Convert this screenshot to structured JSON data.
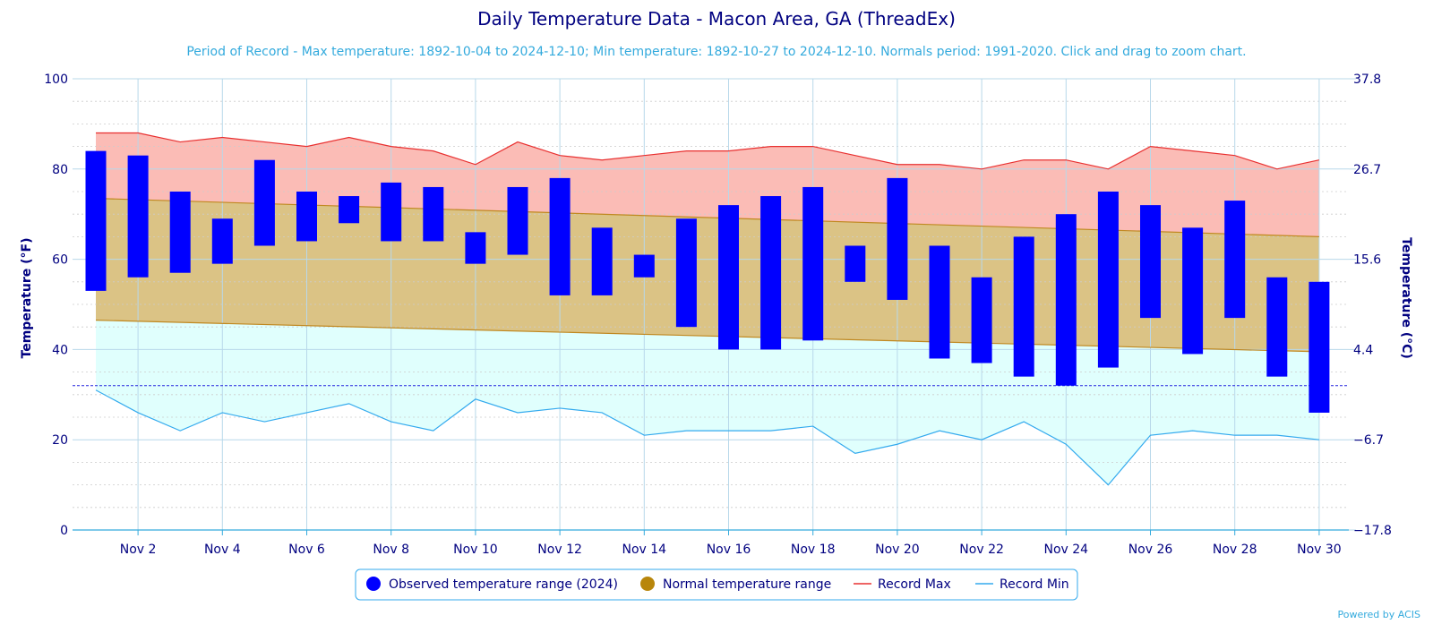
{
  "chart_data": {
    "type": "bar",
    "title": "Daily Temperature Data - Macon Area, GA (ThreadEx)",
    "subtitle": "Period of Record - Max temperature: 1892-10-04 to 2024-12-10; Min temperature: 1892-10-27 to 2024-12-10. Normals period: 1991-2020. Click and drag to zoom chart.",
    "ylabel": "Temperature (°F)",
    "ylabel_right": "Temperature (°C)",
    "ylim": [
      0,
      100
    ],
    "y_ticks": [
      "0",
      "20",
      "40",
      "60",
      "80",
      "100"
    ],
    "y_right_ticks": [
      "−17.8",
      "−6.7",
      "4.4",
      "15.6",
      "26.7",
      "37.8"
    ],
    "x_days": [
      1,
      2,
      3,
      4,
      5,
      6,
      7,
      8,
      9,
      10,
      11,
      12,
      13,
      14,
      15,
      16,
      17,
      18,
      19,
      20,
      21,
      22,
      23,
      24,
      25,
      26,
      27,
      28,
      29,
      30
    ],
    "x_tick_labels": [
      "Nov 2",
      "Nov 4",
      "Nov 6",
      "Nov 8",
      "Nov 10",
      "Nov 12",
      "Nov 14",
      "Nov 16",
      "Nov 18",
      "Nov 20",
      "Nov 22",
      "Nov 24",
      "Nov 26",
      "Nov 28",
      "Nov 30"
    ],
    "freezing_line": 32,
    "series": [
      {
        "name": "Observed temperature range (2024)",
        "color": "#0000ff",
        "low": [
          53,
          56,
          57,
          59,
          63,
          64,
          68,
          64,
          64,
          59,
          61,
          52,
          52,
          56,
          45,
          40,
          40,
          42,
          55,
          51,
          38,
          37,
          34,
          32,
          36,
          47,
          39,
          47,
          34,
          26
        ],
        "high": [
          84,
          83,
          75,
          69,
          82,
          75,
          74,
          77,
          76,
          66,
          76,
          78,
          67,
          61,
          69,
          72,
          74,
          76,
          63,
          78,
          63,
          56,
          65,
          70,
          75,
          72,
          67,
          73,
          56,
          55
        ]
      },
      {
        "name": "Normal temperature range",
        "color": "#b8860b",
        "low_start": 46.5,
        "low_end": 39.5,
        "high_start": 73.5,
        "high_end": 65
      },
      {
        "name": "Record Max",
        "color": "#e83030",
        "values": [
          88,
          88,
          86,
          87,
          86,
          85,
          87,
          85,
          84,
          81,
          86,
          83,
          82,
          83,
          84,
          84,
          85,
          85,
          83,
          81,
          81,
          80,
          82,
          82,
          80,
          85,
          84,
          83,
          80,
          82
        ]
      },
      {
        "name": "Record Min",
        "color": "#33aaee",
        "values": [
          31,
          26,
          22,
          26,
          24,
          26,
          28,
          24,
          22,
          29,
          26,
          27,
          26,
          21,
          22,
          22,
          22,
          23,
          17,
          19,
          22,
          20,
          24,
          19,
          10,
          21,
          22,
          21,
          21,
          20
        ]
      }
    ],
    "legend_position": "bottom-center",
    "credit": "Powered by ACIS"
  }
}
